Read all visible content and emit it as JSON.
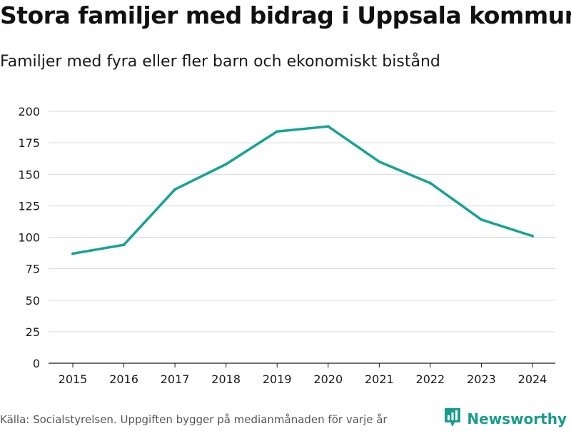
{
  "title": "Stora familjer med bidrag i Uppsala kommun",
  "subtitle": "Familjer med fyra eller fler barn och ekonomiskt bistånd",
  "source": "Källa: Socialstyrelsen. Uppgiften bygger på medianmånaden för varje år",
  "brand": {
    "name": "Newsworthy",
    "logo_icon": "bar-chart-icon",
    "color": "#1a9c8c"
  },
  "colors": {
    "line": "#16a394",
    "grid": "#d9d9d9",
    "axis": "#1a1a1a"
  },
  "chart_data": {
    "type": "line",
    "title": "Stora familjer med bidrag i Uppsala kommun",
    "subtitle": "Familjer med fyra eller fler barn och ekonomiskt bistånd",
    "xlabel": "",
    "ylabel": "",
    "categories": [
      "2015",
      "2016",
      "2017",
      "2018",
      "2019",
      "2020",
      "2021",
      "2022",
      "2023",
      "2024"
    ],
    "series": [
      {
        "name": "Familjer",
        "values": [
          87,
          94,
          138,
          158,
          184,
          188,
          160,
          143,
          114,
          101
        ]
      }
    ],
    "ylim": [
      0,
      200
    ],
    "yticks": [
      0,
      25,
      50,
      75,
      100,
      125,
      150,
      175,
      200
    ],
    "grid": true,
    "legend": "none"
  }
}
